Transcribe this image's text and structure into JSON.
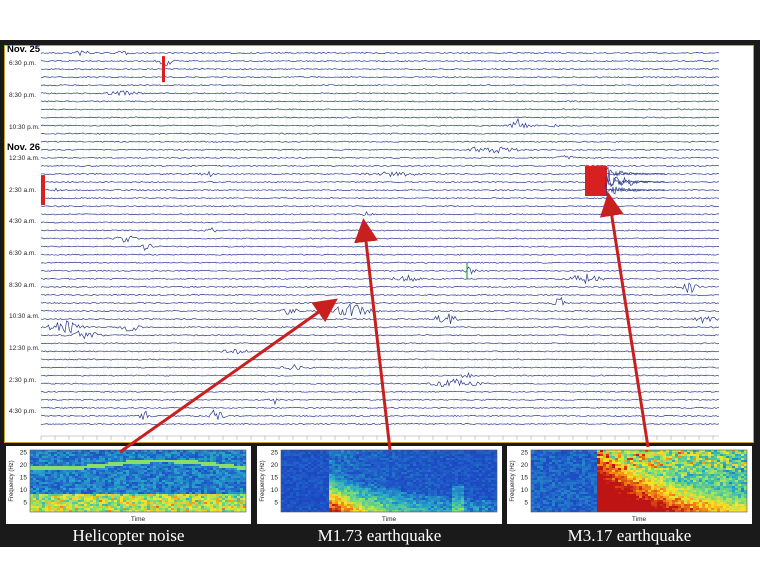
{
  "helicorder": {
    "dates": [
      "Nov. 25",
      "Nov. 26"
    ],
    "time_labels": [
      "6:30 p.m.",
      "8:30 p.m.",
      "10:30 p.m.",
      "12:30 a.m.",
      "2:30 a.m.",
      "4:30 a.m.",
      "6:30 a.m.",
      "8:30 a.m.",
      "10:30 a.m.",
      "12:30 p.m.",
      "2:30 p.m.",
      "4:30 p.m."
    ],
    "trace_color": "#2b3a8f",
    "highlight_color": "#d82020"
  },
  "panels": [
    {
      "caption": "Helicopter noise",
      "ylabel": "Frequency (Hz)",
      "xlabel": "Time",
      "yticks": [
        "25",
        "20",
        "15",
        "10",
        "5"
      ]
    },
    {
      "caption": "M1.73 earthquake",
      "ylabel": "Frequency (Hz)",
      "xlabel": "Time",
      "yticks": [
        "25",
        "20",
        "15",
        "10",
        "5"
      ]
    },
    {
      "caption": "M3.17 earthquake",
      "ylabel": "Frequency (Hz)",
      "xlabel": "Time",
      "yticks": [
        "25",
        "20",
        "15",
        "10",
        "5"
      ]
    }
  ],
  "arrow_color": "#c8201e"
}
